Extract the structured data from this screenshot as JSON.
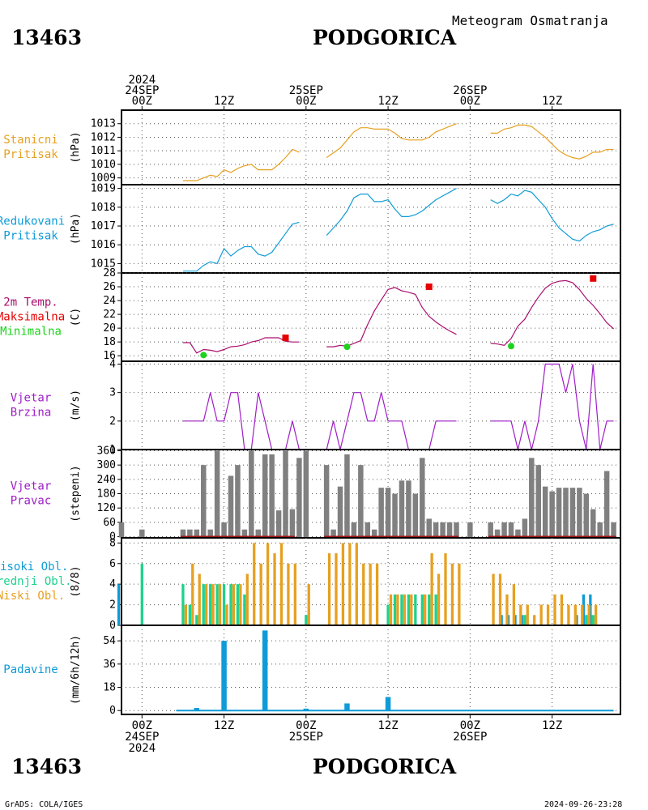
{
  "header": {
    "station_id": "13463",
    "station_name": "PODGORICA",
    "subtitle": "Meteogram Osmatranja"
  },
  "footer": {
    "credit": "GrADS: COLA/IGES",
    "timestamp": "2024-09-26-23:28"
  },
  "time_axis": {
    "top_labels": [
      {
        "t": 0,
        "lines": [
          "2024",
          "24SEP",
          "00Z"
        ]
      },
      {
        "t": 12,
        "lines": [
          "12Z"
        ]
      },
      {
        "t": 24,
        "lines": [
          "25SEP",
          "00Z"
        ]
      },
      {
        "t": 36,
        "lines": [
          "12Z"
        ]
      },
      {
        "t": 48,
        "lines": [
          "26SEP",
          "00Z"
        ]
      },
      {
        "t": 60,
        "lines": [
          "12Z"
        ]
      }
    ],
    "bottom_labels": [
      {
        "t": 0,
        "lines": [
          "00Z",
          "24SEP",
          "2024"
        ]
      },
      {
        "t": 12,
        "lines": [
          "12Z"
        ]
      },
      {
        "t": 24,
        "lines": [
          "00Z",
          "25SEP"
        ]
      },
      {
        "t": 36,
        "lines": [
          "12Z"
        ]
      },
      {
        "t": 48,
        "lines": [
          "00Z",
          "26SEP"
        ]
      },
      {
        "t": 60,
        "lines": [
          "12Z"
        ]
      }
    ],
    "range_hours": [
      -3,
      70
    ],
    "unit": "hours from 2024-09-24 00Z"
  },
  "colors": {
    "pressure": "#e6a021",
    "reduced_pressure": "#0f9bd7",
    "temperature": "#aa0f6e",
    "tmax": "#e60000",
    "tmin": "#1ed21e",
    "wind": "#a01ec8",
    "wind_dir_bar": "#808080",
    "wind_dir_base": "#a01414",
    "cloud_high": "#0f9bd7",
    "cloud_mid": "#1ed28c",
    "cloud_low": "#e6a021",
    "precip": "#0f9bd7",
    "axis": "#000000",
    "grid": "#555555"
  },
  "chart_data": [
    {
      "type": "line",
      "id": "station-pressure",
      "labels": [
        "Stanicni",
        "Pritisak"
      ],
      "ylabel": "(hPa)",
      "ylim": [
        1008.5,
        1014
      ],
      "yticks": [
        1009,
        1010,
        1011,
        1012,
        1013
      ],
      "grid": true,
      "series": [
        {
          "x": [
            6,
            8,
            9,
            10,
            11,
            12,
            13,
            14,
            15,
            16,
            17,
            18,
            19,
            20,
            21,
            22,
            23
          ],
          "y": [
            1008.8,
            1008.8,
            1009.0,
            1009.2,
            1009.1,
            1009.6,
            1009.4,
            1009.7,
            1009.9,
            1010.0,
            1009.6,
            1009.6,
            1009.6,
            1010.0,
            1010.5,
            1011.1,
            1010.9
          ]
        },
        {
          "x": [
            27,
            29,
            30,
            31,
            32,
            33,
            34,
            35,
            36,
            37,
            38,
            39,
            40,
            41,
            42,
            43,
            44,
            45,
            46
          ],
          "y": [
            1010.5,
            1011.2,
            1011.8,
            1012.4,
            1012.7,
            1012.7,
            1012.6,
            1012.6,
            1012.6,
            1012.3,
            1011.9,
            1011.8,
            1011.8,
            1011.8,
            1012.0,
            1012.4,
            1012.6,
            1012.8,
            1013.0
          ]
        },
        {
          "x": [
            51,
            52,
            53,
            54,
            55,
            56,
            57,
            58,
            59,
            60,
            61,
            62,
            63,
            64,
            65,
            66,
            67,
            68,
            69
          ],
          "y": [
            1012.3,
            1012.3,
            1012.6,
            1012.7,
            1012.9,
            1012.9,
            1012.8,
            1012.4,
            1012.0,
            1011.5,
            1011.0,
            1010.7,
            1010.5,
            1010.4,
            1010.6,
            1010.9,
            1010.9,
            1011.1,
            1011.1
          ]
        }
      ]
    },
    {
      "type": "line",
      "id": "reduced-pressure",
      "labels": [
        "Redukovani",
        "Pritisak"
      ],
      "ylabel": "(hPa)",
      "ylim": [
        1014.5,
        1019.2
      ],
      "yticks": [
        1015,
        1016,
        1017,
        1018,
        1019
      ],
      "grid": true,
      "series": [
        {
          "x": [
            6,
            8,
            9,
            10,
            11,
            12,
            13,
            14,
            15,
            16,
            17,
            18,
            19,
            20,
            21,
            22,
            23
          ],
          "y": [
            1014.6,
            1014.6,
            1014.9,
            1015.1,
            1015.0,
            1015.8,
            1015.4,
            1015.7,
            1015.9,
            1015.9,
            1015.5,
            1015.4,
            1015.6,
            1016.1,
            1016.6,
            1017.1,
            1017.2
          ]
        },
        {
          "x": [
            27,
            29,
            30,
            31,
            32,
            33,
            34,
            35,
            36,
            37,
            38,
            39,
            40,
            41,
            42,
            43,
            44,
            45,
            46
          ],
          "y": [
            1016.5,
            1017.3,
            1017.8,
            1018.5,
            1018.7,
            1018.7,
            1018.3,
            1018.3,
            1018.4,
            1017.9,
            1017.5,
            1017.5,
            1017.6,
            1017.8,
            1018.1,
            1018.4,
            1018.6,
            1018.8,
            1019.0
          ]
        },
        {
          "x": [
            51,
            52,
            53,
            54,
            55,
            56,
            57,
            58,
            59,
            60,
            61,
            62,
            63,
            64,
            65,
            66,
            67,
            68,
            69
          ],
          "y": [
            1018.4,
            1018.2,
            1018.4,
            1018.7,
            1018.6,
            1018.9,
            1018.8,
            1018.4,
            1018.0,
            1017.4,
            1016.9,
            1016.6,
            1016.3,
            1016.2,
            1016.5,
            1016.7,
            1016.8,
            1017.0,
            1017.1
          ]
        }
      ]
    },
    {
      "type": "line",
      "id": "temperature",
      "labels": [
        "2m Temp.",
        "Maksimalna",
        "Minimalna"
      ],
      "ylabel": "(C)",
      "ylim": [
        15.2,
        28
      ],
      "yticks": [
        16,
        18,
        20,
        22,
        24,
        26,
        28
      ],
      "grid": true,
      "series": [
        {
          "x": [
            6,
            7,
            8,
            9,
            10,
            11,
            12,
            13,
            14,
            15,
            16,
            17,
            18,
            19,
            20,
            21,
            22,
            23
          ],
          "y": [
            17.9,
            17.9,
            16.4,
            16.9,
            16.8,
            16.6,
            16.9,
            17.3,
            17.4,
            17.6,
            18.0,
            18.2,
            18.6,
            18.6,
            18.6,
            18.1,
            18.0,
            18.0
          ]
        },
        {
          "x": [
            27,
            28,
            29,
            30,
            31,
            32,
            33,
            34,
            35,
            36,
            37,
            38,
            39,
            40,
            41,
            42,
            43,
            44,
            45,
            46
          ],
          "y": [
            17.3,
            17.3,
            17.5,
            17.4,
            17.8,
            18.2,
            20.5,
            22.5,
            24.1,
            25.6,
            25.9,
            25.4,
            25.2,
            24.9,
            23.0,
            21.7,
            20.9,
            20.2,
            19.6,
            19.1
          ]
        },
        {
          "x": [
            51,
            52,
            53,
            54,
            55,
            56,
            57,
            58,
            59,
            60,
            61,
            62,
            63,
            64,
            65,
            66,
            67,
            68,
            69
          ],
          "y": [
            17.8,
            17.7,
            17.5,
            18.5,
            20.3,
            21.3,
            23.0,
            24.5,
            25.8,
            26.5,
            26.8,
            26.9,
            26.6,
            25.6,
            24.3,
            23.3,
            22.1,
            20.8,
            19.9
          ]
        }
      ],
      "maxima": [
        {
          "x": 21,
          "y": 18.6
        },
        {
          "x": 42,
          "y": 26.0
        },
        {
          "x": 66,
          "y": 27.2
        }
      ],
      "minima": [
        {
          "x": 9,
          "y": 16.1
        },
        {
          "x": 30,
          "y": 17.3
        },
        {
          "x": 54,
          "y": 17.4
        }
      ]
    },
    {
      "type": "line",
      "id": "wind-speed",
      "labels": [
        "Vjetar",
        "Brzina"
      ],
      "ylabel": "(m/s)",
      "ylim": [
        1,
        4.1
      ],
      "yticks": [
        1,
        2,
        3,
        4
      ],
      "grid": true,
      "series": [
        {
          "x": [
            6,
            7,
            8,
            9,
            10,
            11,
            12,
            13,
            14,
            15,
            16,
            17,
            18,
            19,
            20,
            21,
            22,
            23
          ],
          "y": [
            2,
            2,
            2,
            2,
            3,
            2,
            2,
            3,
            3,
            1,
            1,
            3,
            2,
            1,
            1,
            1,
            2,
            1
          ]
        },
        {
          "x": [
            27,
            28,
            29,
            30,
            31,
            32,
            33,
            34,
            35,
            36,
            37,
            38,
            39,
            40,
            41,
            42,
            43,
            44,
            45,
            46
          ],
          "y": [
            1,
            2,
            1,
            2,
            3,
            3,
            2,
            2,
            3,
            2,
            2,
            2,
            1,
            1,
            1,
            1,
            2,
            2,
            2,
            2
          ]
        },
        {
          "x": [
            51,
            52,
            53,
            54,
            55,
            56,
            57,
            58,
            59,
            60,
            61,
            62,
            63,
            64,
            65,
            66,
            67,
            68,
            69
          ],
          "y": [
            2,
            2,
            2,
            2,
            1,
            2,
            1,
            2,
            4,
            4,
            4,
            3,
            4,
            2,
            1,
            4,
            1,
            2,
            2
          ]
        }
      ]
    },
    {
      "type": "bar",
      "id": "wind-direction",
      "labels": [
        "Vjetar",
        "Pravac"
      ],
      "ylabel": "(stepeni)",
      "ylim": [
        -5,
        365
      ],
      "yticks": [
        0,
        60,
        120,
        180,
        240,
        300,
        360
      ],
      "grid": true,
      "x": [
        -3,
        0,
        6,
        7,
        8,
        9,
        10,
        11,
        12,
        13,
        14,
        15,
        16,
        17,
        18,
        19,
        20,
        21,
        22,
        23,
        24,
        27,
        28,
        29,
        30,
        31,
        32,
        33,
        34,
        35,
        36,
        37,
        38,
        39,
        40,
        41,
        42,
        43,
        44,
        45,
        46,
        48,
        51,
        52,
        53,
        54,
        55,
        56,
        57,
        58,
        59,
        60,
        61,
        62,
        63,
        64,
        65,
        66,
        67,
        68,
        69
      ],
      "values": [
        60,
        30,
        30,
        30,
        30,
        300,
        30,
        360,
        60,
        255,
        300,
        30,
        360,
        30,
        345,
        345,
        110,
        360,
        115,
        330,
        360,
        300,
        30,
        210,
        345,
        60,
        300,
        60,
        30,
        205,
        205,
        180,
        235,
        235,
        180,
        330,
        75,
        60,
        60,
        60,
        60,
        60,
        60,
        30,
        60,
        60,
        30,
        75,
        330,
        300,
        210,
        190,
        205,
        205,
        205,
        205,
        180,
        115,
        60,
        275,
        60
      ],
      "calm_baselines": [
        [
          6,
          22
        ],
        [
          27,
          46
        ],
        [
          51,
          69
        ]
      ]
    },
    {
      "type": "bar",
      "id": "clouds",
      "labels": [
        "Visoki Obl.",
        "Srednji Obl.",
        "Niski Obl."
      ],
      "ylabel": "(8/8)",
      "ylim": [
        0,
        8.5
      ],
      "yticks": [
        0,
        2,
        4,
        6,
        8
      ],
      "grid": true,
      "x": [
        -3,
        0,
        6,
        7,
        8,
        9,
        10,
        11,
        12,
        13,
        14,
        15,
        16,
        17,
        18,
        19,
        20,
        21,
        22,
        24,
        27,
        28,
        29,
        30,
        31,
        32,
        33,
        34,
        35,
        36,
        37,
        38,
        39,
        40,
        41,
        42,
        43,
        44,
        45,
        46,
        48,
        51,
        52,
        53,
        54,
        55,
        56,
        57,
        58,
        59,
        60,
        61,
        62,
        63,
        64,
        65,
        66,
        67,
        68,
        69
      ],
      "series": [
        {
          "name": "Visoki Obl.",
          "values": [
            4,
            0,
            0,
            0,
            0,
            0,
            0,
            0,
            0,
            0,
            0,
            0,
            0,
            0,
            0,
            0,
            0,
            0,
            0,
            0,
            0,
            0,
            0,
            0,
            0,
            0,
            0,
            0,
            0,
            0,
            0,
            0,
            0,
            0,
            0,
            0,
            0,
            0,
            0,
            0,
            0,
            0,
            0,
            1,
            1,
            1,
            1,
            0,
            0,
            0,
            0,
            0,
            0,
            0,
            1,
            3,
            3,
            0,
            0,
            0
          ]
        },
        {
          "name": "Srednji Obl.",
          "values": [
            0,
            6,
            4,
            2,
            1,
            4,
            4,
            4,
            4,
            4,
            4,
            3,
            0,
            0,
            0,
            0,
            0,
            0,
            0,
            1,
            0,
            0,
            0,
            0,
            0,
            0,
            0,
            0,
            0,
            2,
            3,
            3,
            3,
            3,
            3,
            3,
            3,
            0,
            0,
            0,
            0,
            0,
            0,
            0,
            0,
            0,
            1,
            0,
            0,
            0,
            0,
            0,
            0,
            0,
            0,
            1,
            1,
            0,
            0,
            0
          ]
        },
        {
          "name": "Niski Obl.",
          "values": [
            0,
            0,
            2,
            6,
            5,
            4,
            4,
            4,
            2,
            4,
            4,
            5,
            8,
            6,
            8,
            7,
            8,
            6,
            6,
            4,
            7,
            7,
            8,
            8,
            8,
            6,
            6,
            6,
            0,
            3,
            3,
            3,
            3,
            0,
            3,
            7,
            5,
            7,
            6,
            6,
            0,
            5,
            5,
            3,
            4,
            2,
            2,
            1,
            2,
            2,
            3,
            3,
            2,
            2,
            2,
            2,
            2,
            0,
            0,
            0
          ]
        }
      ]
    },
    {
      "type": "bar",
      "id": "precipitation",
      "labels": [
        "Padavine"
      ],
      "ylabel": "(mm/6h/12h)",
      "ylim": [
        -3,
        66
      ],
      "yticks": [
        0,
        18,
        36,
        54
      ],
      "grid": true,
      "x": [
        8,
        12,
        18,
        24,
        30,
        36
      ],
      "values": [
        2,
        54,
        62,
        1.5,
        5.5,
        10.5
      ]
    }
  ]
}
